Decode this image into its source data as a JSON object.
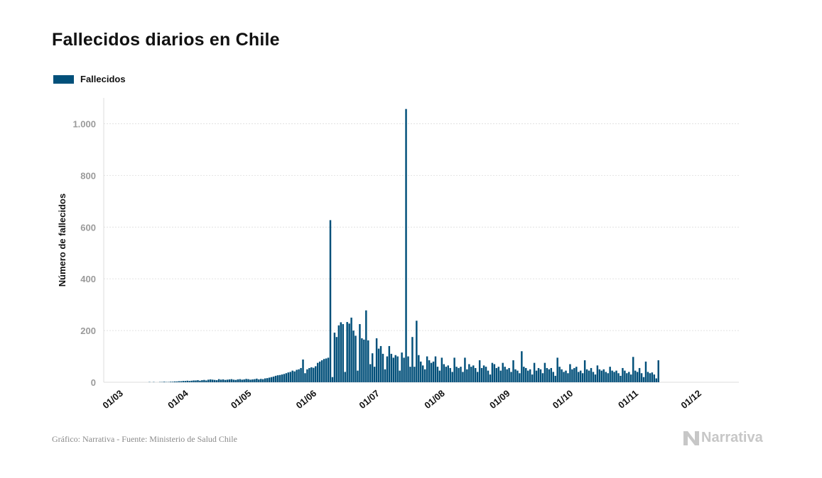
{
  "title": "Fallecidos diarios en Chile",
  "legend": {
    "label": "Fallecidos",
    "color": "#02507a"
  },
  "footer": {
    "source": "Gráfico: Narrativa - Fuente: Ministerio de Salud Chile"
  },
  "brand": {
    "name": "Narrativa",
    "icon": "narrativa-n-icon"
  },
  "chart_data": {
    "type": "bar",
    "title": "Fallecidos diarios en Chile",
    "ylabel": "Número de fallecidos",
    "xlabel": "",
    "ylim": [
      0,
      1100
    ],
    "y_ticks": [
      0,
      200,
      400,
      600,
      800,
      1000
    ],
    "y_tick_labels": [
      "0",
      "200",
      "400",
      "600",
      "800",
      "1.000"
    ],
    "grid": true,
    "legend_position": "top-left",
    "x_start": "2020-03-01",
    "x_tick_labels": [
      "01/03",
      "01/04",
      "01/05",
      "01/06",
      "01/07",
      "01/08",
      "01/09",
      "01/10",
      "01/11",
      "01/12"
    ],
    "series": [
      {
        "name": "Fallecidos",
        "color": "#02507a",
        "values": [
          0,
          0,
          0,
          0,
          0,
          0,
          0,
          0,
          0,
          0,
          0,
          0,
          0,
          0,
          0,
          0,
          0,
          0,
          0,
          0,
          1,
          0,
          1,
          0,
          0,
          1,
          1,
          2,
          1,
          1,
          2,
          2,
          3,
          3,
          4,
          4,
          5,
          5,
          6,
          5,
          6,
          7,
          7,
          8,
          6,
          8,
          9,
          7,
          10,
          11,
          10,
          9,
          8,
          12,
          10,
          11,
          9,
          10,
          11,
          12,
          10,
          9,
          11,
          12,
          10,
          11,
          13,
          12,
          10,
          11,
          12,
          14,
          11,
          13,
          12,
          15,
          16,
          18,
          20,
          22,
          25,
          27,
          28,
          30,
          32,
          35,
          38,
          40,
          45,
          42,
          48,
          50,
          55,
          88,
          35,
          50,
          55,
          58,
          56,
          62,
          75,
          80,
          85,
          90,
          92,
          95,
          627,
          20,
          192,
          175,
          220,
          232,
          225,
          40,
          233,
          227,
          250,
          200,
          180,
          45,
          225,
          170,
          165,
          278,
          162,
          70,
          112,
          60,
          170,
          130,
          140,
          110,
          50,
          100,
          140,
          110,
          95,
          105,
          100,
          45,
          115,
          95,
          1057,
          100,
          60,
          175,
          60,
          238,
          105,
          80,
          65,
          50,
          100,
          85,
          75,
          80,
          100,
          60,
          45,
          95,
          70,
          60,
          65,
          55,
          40,
          95,
          60,
          55,
          60,
          40,
          95,
          50,
          70,
          60,
          65,
          55,
          40,
          85,
          55,
          65,
          60,
          45,
          30,
          75,
          70,
          55,
          60,
          45,
          75,
          60,
          50,
          55,
          40,
          85,
          50,
          45,
          35,
          120,
          60,
          55,
          45,
          50,
          30,
          75,
          45,
          55,
          50,
          35,
          75,
          55,
          50,
          55,
          40,
          25,
          95,
          60,
          50,
          40,
          45,
          35,
          70,
          50,
          55,
          60,
          40,
          45,
          35,
          85,
          50,
          45,
          55,
          40,
          30,
          65,
          50,
          45,
          50,
          40,
          35,
          60,
          45,
          40,
          45,
          35,
          25,
          55,
          45,
          35,
          40,
          30,
          98,
          45,
          40,
          55,
          35,
          20,
          80,
          40,
          35,
          38,
          30,
          15,
          85
        ]
      }
    ]
  }
}
